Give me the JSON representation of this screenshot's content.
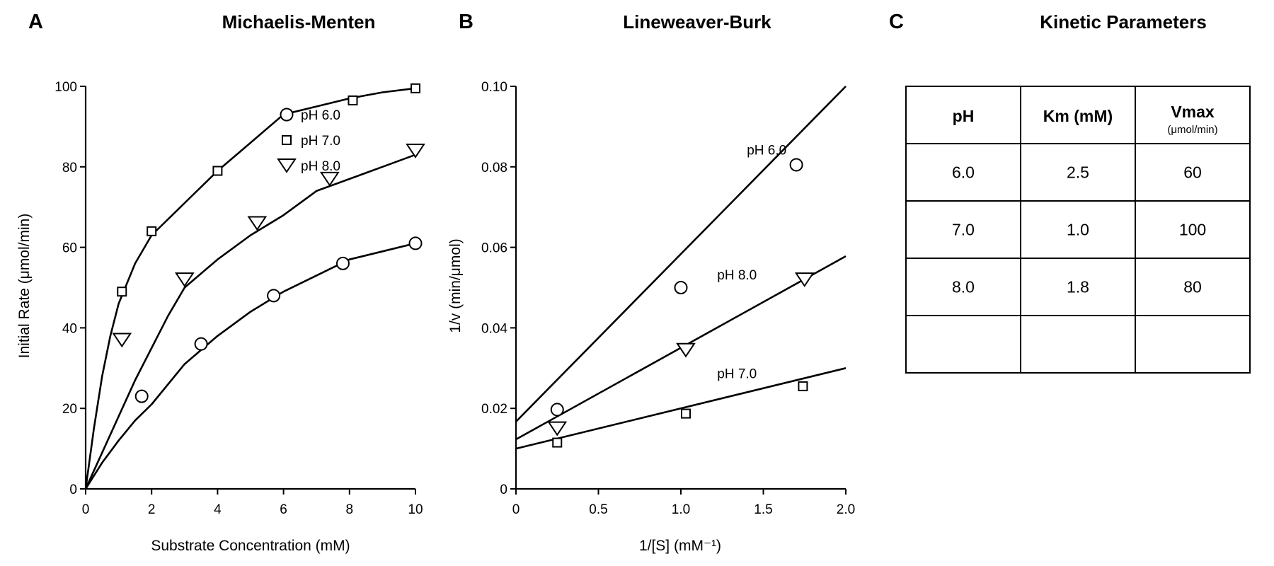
{
  "panels": [
    {
      "letter": "A",
      "title": "Michaelis-Menten"
    },
    {
      "letter": "B",
      "title": "Lineweaver-Burk"
    },
    {
      "letter": "C",
      "title": "Kinetic Parameters"
    }
  ],
  "chart_data": [
    {
      "type": "scatter",
      "title": "Michaelis-Menten",
      "xlabel": "Substrate Concentration (mM)",
      "ylabel": "Initial Rate (μmol/min)",
      "xlim": [
        0,
        10
      ],
      "ylim": [
        0,
        100
      ],
      "xticks": [
        0,
        2,
        4,
        6,
        8,
        10
      ],
      "yticks": [
        0,
        20,
        40,
        60,
        80,
        100
      ],
      "grid": false,
      "legend": "top-center",
      "series": [
        {
          "name": "pH 6.0",
          "marker": "circle",
          "x": [
            1.7,
            3.5,
            5.7,
            7.8,
            10.0
          ],
          "y": [
            23,
            36,
            48,
            56,
            61
          ],
          "fit_x": [
            0,
            0.5,
            1,
            1.5,
            2,
            3,
            4,
            5,
            6,
            7,
            8,
            9,
            10
          ],
          "fit_y": [
            0,
            6.5,
            12,
            17,
            21,
            31,
            38,
            44,
            49,
            53,
            57,
            59,
            61
          ]
        },
        {
          "name": "pH 7.0",
          "marker": "square",
          "x": [
            1.1,
            2.0,
            4.0,
            6.1,
            8.1,
            10.0
          ],
          "y": [
            49,
            64,
            79,
            93,
            96.5,
            99.5
          ],
          "fit_x": [
            0,
            0.25,
            0.5,
            0.75,
            1,
            1.5,
            2,
            3,
            4,
            5,
            6,
            7,
            8,
            9,
            10
          ],
          "fit_y": [
            0,
            15,
            28,
            38,
            46,
            56,
            63,
            71,
            79,
            86,
            93,
            95,
            97,
            98.5,
            99.5
          ]
        },
        {
          "name": "pH 8.0",
          "marker": "triangle-down",
          "x": [
            1.1,
            3.0,
            5.2,
            7.4,
            10.0
          ],
          "y": [
            37,
            52,
            66,
            77,
            84
          ],
          "fit_x": [
            0,
            0.5,
            1,
            1.5,
            2,
            2.5,
            3,
            4,
            5,
            6,
            7,
            8,
            9,
            10
          ],
          "fit_y": [
            0,
            9,
            18,
            27,
            35,
            43,
            50,
            57,
            63,
            68,
            74,
            77,
            80,
            83
          ]
        }
      ]
    },
    {
      "type": "scatter",
      "title": "Lineweaver-Burk",
      "xlabel": "1/[S] (mM⁻¹)",
      "ylabel": "1/v (min/μmol)",
      "xlim": [
        0,
        2.0
      ],
      "ylim": [
        0,
        0.1
      ],
      "xticks": [
        0,
        0.5,
        1.0,
        1.5,
        2.0
      ],
      "xtick_labels": [
        "0",
        "0.5",
        "1.0",
        "1.5",
        "2.0"
      ],
      "yticks": [
        0,
        0.02,
        0.04,
        0.06,
        0.08,
        0.1
      ],
      "ytick_labels": [
        "0",
        "0.02",
        "0.04",
        "0.06",
        "0.08",
        "0.10"
      ],
      "grid": false,
      "series": [
        {
          "name": "pH 6.0",
          "marker": "circle",
          "x": [
            0.25,
            1.0,
            1.7
          ],
          "y": [
            0.0197,
            0.05,
            0.0805
          ],
          "line_x": [
            0,
            2.0
          ],
          "line_y": [
            0.0167,
            0.1
          ],
          "label_x": 1.4,
          "label_y": 0.083
        },
        {
          "name": "pH 7.0",
          "marker": "square",
          "x": [
            0.25,
            1.03,
            1.74
          ],
          "y": [
            0.0115,
            0.0187,
            0.0255
          ],
          "line_x": [
            0,
            2.0
          ],
          "line_y": [
            0.01,
            0.03
          ],
          "label_x": 1.22,
          "label_y": 0.0275
        },
        {
          "name": "pH 8.0",
          "marker": "triangle-down",
          "x": [
            0.25,
            1.03,
            1.75
          ],
          "y": [
            0.015,
            0.0345,
            0.052
          ],
          "line_x": [
            0,
            2.0
          ],
          "line_y": [
            0.0123,
            0.0578
          ],
          "label_x": 1.22,
          "label_y": 0.052
        }
      ]
    },
    {
      "type": "table",
      "title": "Kinetic Parameters",
      "columns": [
        {
          "label": "pH",
          "sub": ""
        },
        {
          "label": "Km (mM)",
          "sub": ""
        },
        {
          "label": "Vmax",
          "sub": "(μmol/min)"
        }
      ],
      "rows": [
        [
          "6.0",
          "2.5",
          "60"
        ],
        [
          "7.0",
          "1.0",
          "100"
        ],
        [
          "8.0",
          "1.8",
          "80"
        ],
        [
          "",
          "",
          ""
        ]
      ]
    }
  ]
}
